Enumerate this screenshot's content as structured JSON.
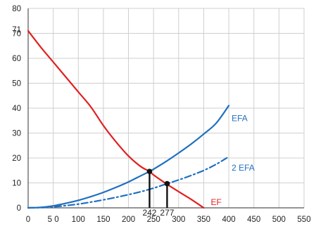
{
  "chart_data": {
    "type": "line",
    "title": "",
    "xlabel": "",
    "ylabel": "",
    "xlim": [
      0,
      550
    ],
    "ylim": [
      0,
      80
    ],
    "x_ticks": [
      {
        "value": 0,
        "label": "0"
      },
      {
        "value": 50,
        "label": "5 0"
      },
      {
        "value": 100,
        "label": "100"
      },
      {
        "value": 150,
        "label": "150"
      },
      {
        "value": 200,
        "label": "200"
      },
      {
        "value": 250,
        "label": "250"
      },
      {
        "value": 300,
        "label": "300"
      },
      {
        "value": 350,
        "label": "350"
      },
      {
        "value": 400,
        "label": "400"
      },
      {
        "value": 450,
        "label": "450"
      },
      {
        "value": 500,
        "label": "500"
      },
      {
        "value": 550,
        "label": "550"
      }
    ],
    "y_ticks": [
      {
        "value": 0,
        "label": "0"
      },
      {
        "value": 10,
        "label": "10"
      },
      {
        "value": 20,
        "label": "20"
      },
      {
        "value": 30,
        "label": "30"
      },
      {
        "value": 40,
        "label": "40"
      },
      {
        "value": 50,
        "label": "50"
      },
      {
        "value": 60,
        "label": "60"
      },
      {
        "value": 70,
        "label": "70"
      },
      {
        "value": 71,
        "label": "71"
      },
      {
        "value": 80,
        "label": "80"
      }
    ],
    "grid": true,
    "series": [
      {
        "name": "EF",
        "color": "#e02020",
        "style": "solid",
        "x": [
          0,
          25,
          50,
          75,
          100,
          125,
          150,
          175,
          200,
          225,
          242,
          250,
          275,
          300,
          325,
          350
        ],
        "y": [
          71,
          64.5,
          58.5,
          52.5,
          46.5,
          40.5,
          33,
          26.5,
          20.8,
          16.5,
          14.6,
          13.2,
          9.7,
          6.5,
          3.4,
          0
        ]
      },
      {
        "name": "EFA",
        "color": "#1f6fc0",
        "style": "solid",
        "x": [
          0,
          25,
          50,
          75,
          100,
          125,
          150,
          175,
          200,
          225,
          242,
          250,
          275,
          300,
          325,
          350,
          375,
          400
        ],
        "y": [
          0,
          0.2,
          0.8,
          1.8,
          3,
          4.5,
          6.2,
          8.2,
          10.4,
          12.9,
          14.6,
          15.5,
          18.6,
          22,
          25.6,
          29.6,
          34,
          41
        ]
      },
      {
        "name": "2 EFA",
        "color": "#1f6fc0",
        "style": "dashdot",
        "x": [
          0,
          25,
          50,
          75,
          100,
          125,
          150,
          175,
          200,
          225,
          250,
          277,
          300,
          325,
          350,
          375,
          400
        ],
        "y": [
          0,
          0.1,
          0.4,
          0.9,
          1.5,
          2.3,
          3.2,
          4.2,
          5.3,
          6.5,
          7.9,
          9.7,
          11.2,
          13,
          15,
          17.5,
          20.5
        ]
      }
    ],
    "intersections": [
      {
        "x": 242,
        "y": 14.6,
        "label": "242"
      },
      {
        "x": 277,
        "y": 9.7,
        "label": "277"
      }
    ]
  }
}
